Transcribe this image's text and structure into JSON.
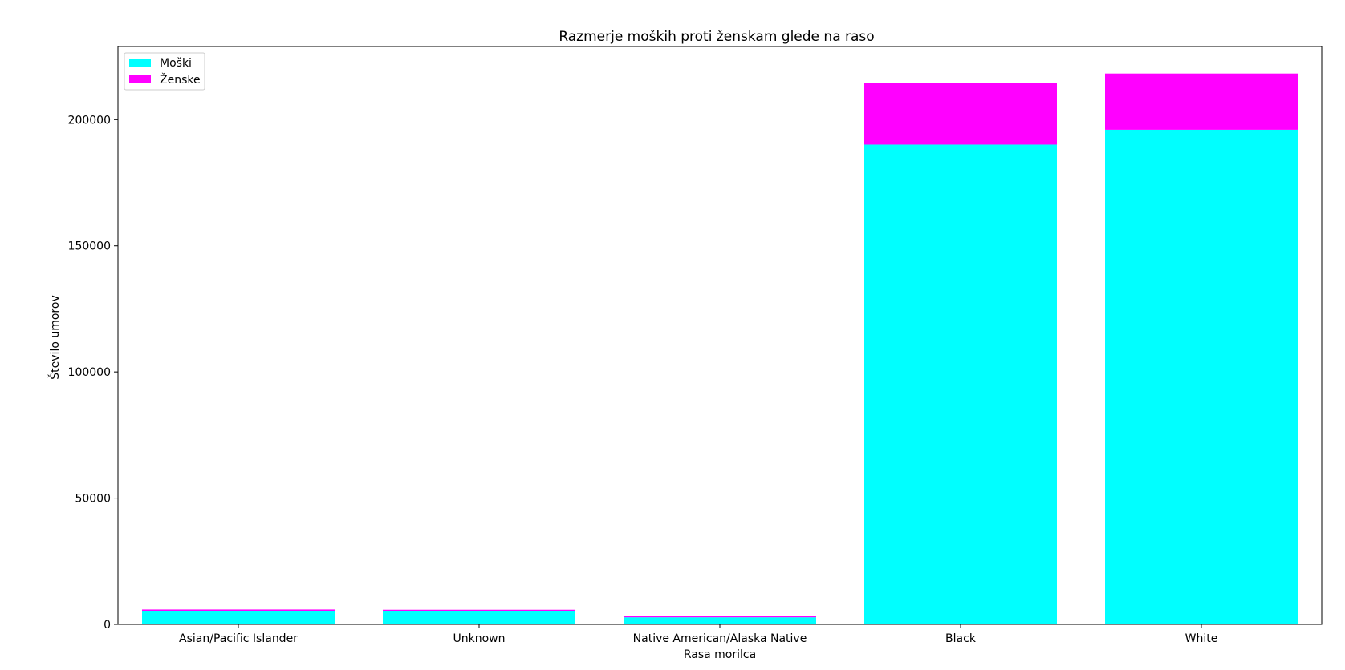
{
  "chart_data": {
    "type": "bar",
    "stacked": true,
    "title": "Razmerje moških proti ženskam glede na raso",
    "xlabel": "Rasa morilca",
    "ylabel": "Število umorov",
    "categories": [
      "Asian/Pacific Islander",
      "Unknown",
      "Native American/Alaska Native",
      "Black",
      "White"
    ],
    "series": [
      {
        "name": "Moški",
        "color": "#00ffff",
        "values": [
          5200,
          5100,
          2800,
          190100,
          196000
        ]
      },
      {
        "name": "Ženske",
        "color": "#ff00ff",
        "values": [
          700,
          700,
          500,
          24500,
          22300
        ]
      }
    ],
    "ylim": [
      0,
      229000
    ],
    "yticks": [
      0,
      50000,
      100000,
      150000,
      200000
    ],
    "ytick_labels": [
      "0",
      "50000",
      "100000",
      "150000",
      "200000"
    ],
    "grid": false,
    "legend_position": "top-left"
  }
}
